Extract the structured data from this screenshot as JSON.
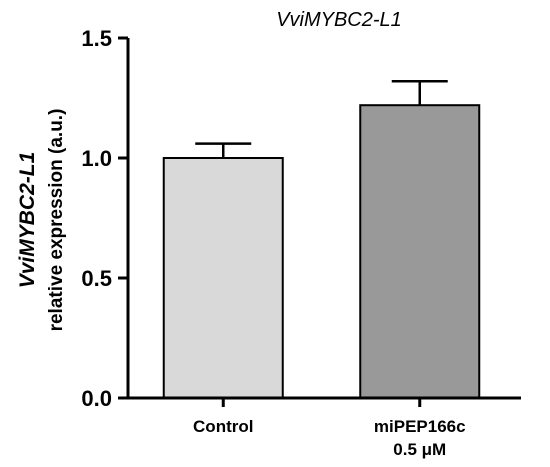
{
  "chart_data": {
    "type": "bar",
    "title": "VviMYBC2-L1",
    "ylabel_gene": "VviMYBC2-L1",
    "ylabel": "relative expression (a.u.)",
    "xlabel": "",
    "categories": [
      "Control",
      "miPEP166c\n0.5 μM"
    ],
    "values": [
      1.0,
      1.22
    ],
    "errors": [
      0.06,
      0.1
    ],
    "bar_colors": [
      "#d9d9d9",
      "#999999"
    ],
    "ylim": [
      0,
      1.5
    ],
    "yticks": [
      "0.0",
      "0.5",
      "1.0",
      "1.5"
    ],
    "grid": false,
    "legend": "none"
  }
}
